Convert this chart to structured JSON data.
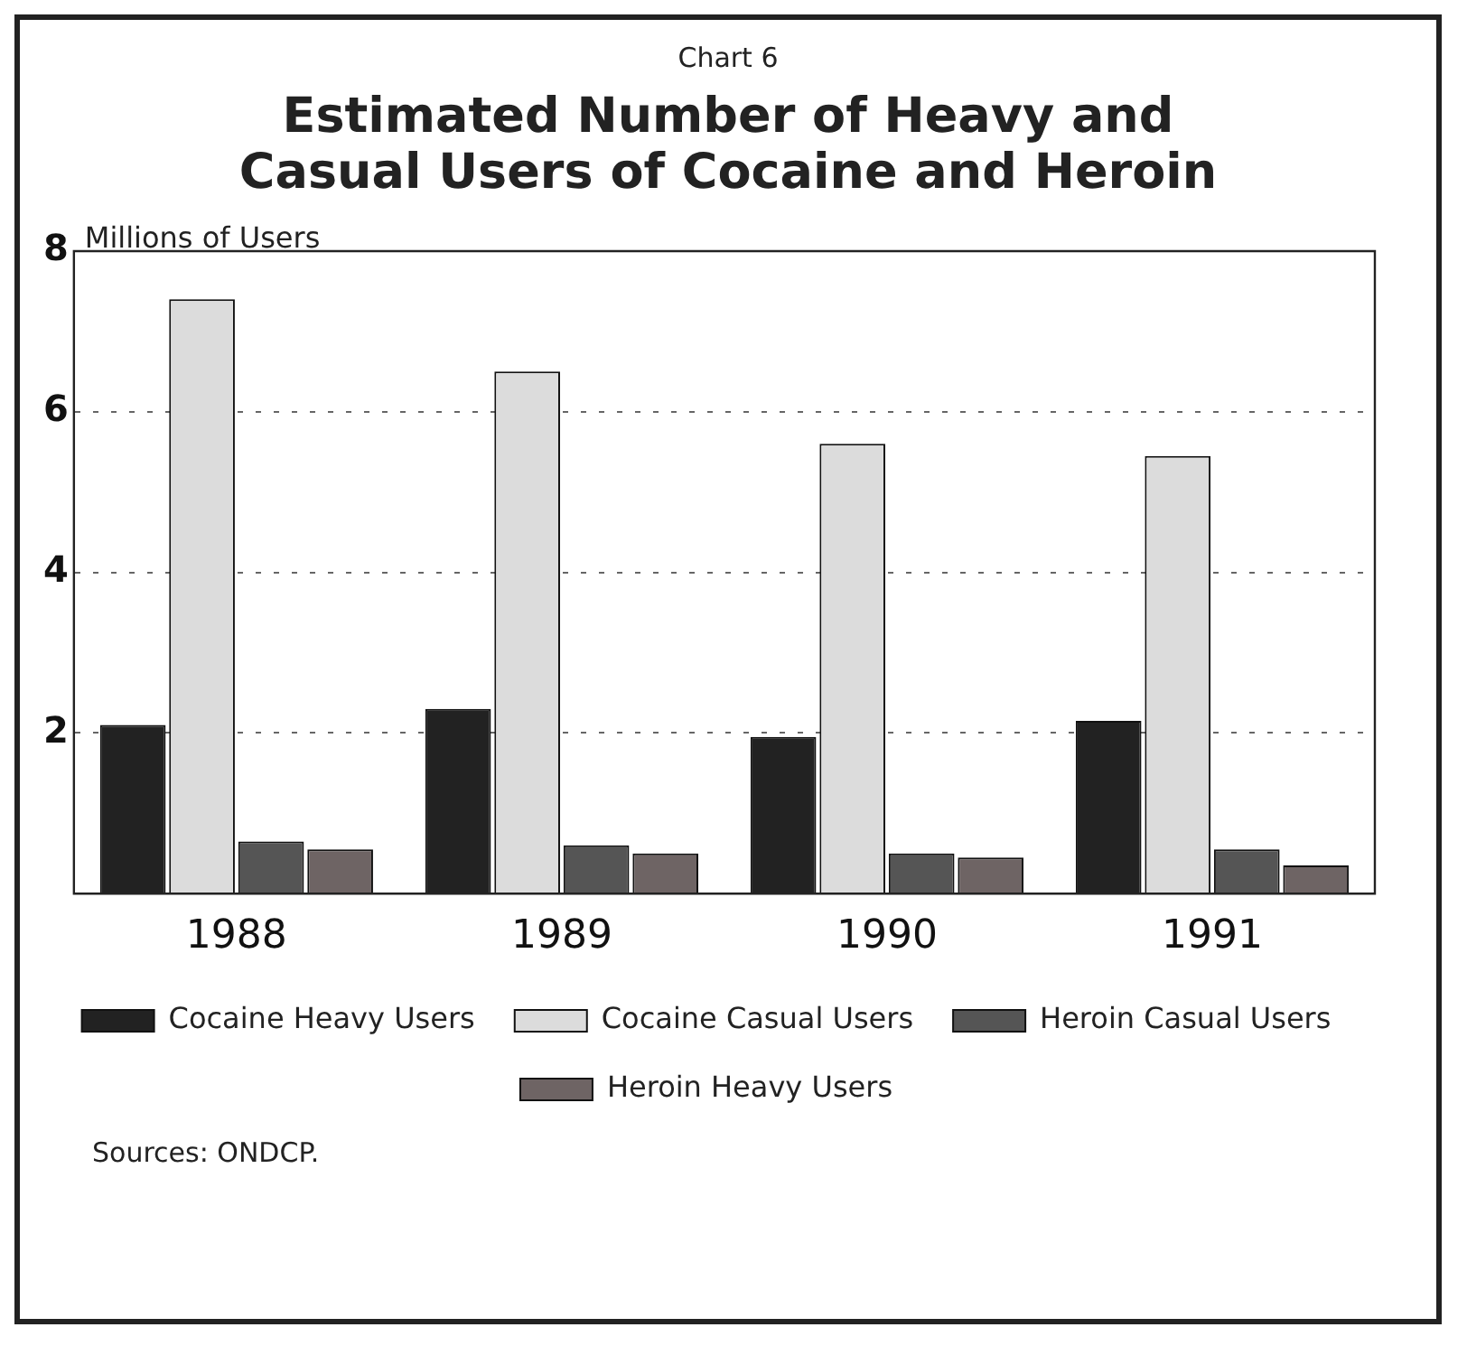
{
  "chart_data": {
    "type": "bar",
    "subtitle": "Chart 6",
    "title": "Estimated Number of Heavy and Casual Users of Cocaine and Heroin",
    "ylabel": "Millions of Users",
    "categories": [
      "1988",
      "1989",
      "1990",
      "1991"
    ],
    "series": [
      {
        "name": "Cocaine Heavy Users",
        "color": "#222222",
        "values": [
          2.1,
          2.3,
          1.95,
          2.15
        ]
      },
      {
        "name": "Cocaine Casual Users",
        "color": "#dcdcdc",
        "values": [
          7.4,
          6.5,
          5.6,
          5.45
        ]
      },
      {
        "name": "Heroin Casual Users",
        "color": "#555555",
        "values": [
          0.65,
          0.6,
          0.5,
          0.55
        ]
      },
      {
        "name": "Heroin Heavy Users",
        "color": "#6e6464",
        "values": [
          0.55,
          0.5,
          0.45,
          0.35
        ]
      }
    ],
    "ylim": [
      0,
      8
    ],
    "yticks": [
      {
        "value": 0,
        "label": null
      },
      2,
      4,
      6,
      8
    ],
    "grid": "y",
    "legend": "bottom",
    "annotations": [
      "Sources: ONDCP."
    ]
  }
}
